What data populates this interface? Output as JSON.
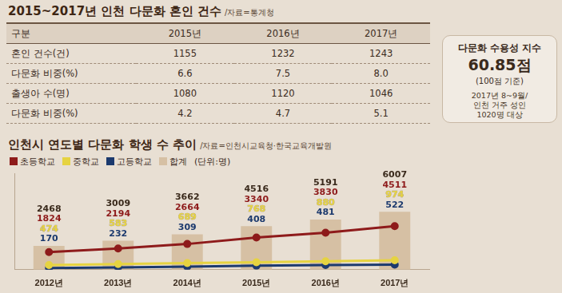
{
  "table": {
    "title": "2015~2017년 인천 다문화 혼인 건수",
    "source": "/자료=통계청",
    "header": [
      "구분",
      "2015년",
      "2016년",
      "2017년"
    ],
    "rows": [
      [
        "혼인 건수(건)",
        "1155",
        "1232",
        "1243"
      ],
      [
        "다문화 비중(%)",
        "6.6",
        "7.5",
        "8.0"
      ],
      [
        "출생아 수(명)",
        "1080",
        "1120",
        "1046"
      ],
      [
        "다문화 비중(%)",
        "4.2",
        "4.7",
        "5.1"
      ]
    ]
  },
  "index_box": {
    "title": "다문화 수용성 지수",
    "value": "60.85점",
    "basis": "(100점 기준)",
    "note": [
      "2017년 8~9월/",
      "인천 거주 성인",
      "1020명 대상"
    ]
  },
  "chart_data": {
    "type": "bar",
    "title": "인천시 연도별 다문화 학생 수 추이",
    "source": "/자료=인천시교육청·한국교육개발원",
    "unit": "(단위:명)",
    "categories": [
      "2012년",
      "2013년",
      "2014년",
      "2015년",
      "2016년",
      "2017년"
    ],
    "series": [
      {
        "name": "초등학교",
        "color": "#8e1b1b",
        "type": "line",
        "marker": "circle",
        "values": [
          1824,
          2194,
          2664,
          3340,
          3830,
          4511
        ]
      },
      {
        "name": "중학교",
        "color": "#e6d341",
        "type": "line",
        "marker": "circle",
        "values": [
          474,
          583,
          689,
          768,
          880,
          974
        ]
      },
      {
        "name": "고등학교",
        "color": "#1c3a6e",
        "type": "line",
        "marker": "circle",
        "values": [
          170,
          232,
          309,
          408,
          481,
          522
        ]
      },
      {
        "name": "합계",
        "color": "#d6c0a4",
        "type": "bar",
        "values": [
          2468,
          3009,
          3662,
          4516,
          5191,
          6007
        ]
      }
    ],
    "ylim": [
      0,
      10000
    ],
    "tick_labels": "x",
    "grid": false,
    "data_labels": true,
    "legend": "top-left"
  }
}
